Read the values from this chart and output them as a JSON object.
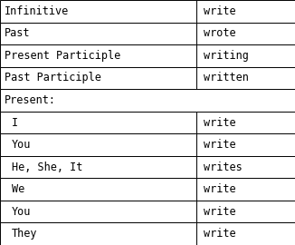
{
  "rows": [
    {
      "label": "Infinitive",
      "value": "write",
      "type": "normal",
      "indent": false
    },
    {
      "label": "Past",
      "value": "wrote",
      "type": "normal",
      "indent": false
    },
    {
      "label": "Present Participle",
      "value": "writing",
      "type": "normal",
      "indent": false
    },
    {
      "label": "Past Participle",
      "value": "written",
      "type": "normal",
      "indent": false
    },
    {
      "label": "Present:",
      "value": null,
      "type": "header",
      "indent": false
    },
    {
      "label": "I",
      "value": "write",
      "type": "normal",
      "indent": true
    },
    {
      "label": "You",
      "value": "write",
      "type": "normal",
      "indent": true
    },
    {
      "label": "He, She, It",
      "value": "writes",
      "type": "normal",
      "indent": true
    },
    {
      "label": "We",
      "value": "write",
      "type": "normal",
      "indent": true
    },
    {
      "label": "You",
      "value": "write",
      "type": "normal",
      "indent": true
    },
    {
      "label": "They",
      "value": "write",
      "type": "normal",
      "indent": true
    }
  ],
  "bg_color": "#ffffff",
  "border_color": "#000000",
  "font_size": 8.5,
  "font_family": "monospace",
  "col1_ratio": 0.665,
  "figsize": [
    3.26,
    2.7
  ],
  "dpi": 100
}
